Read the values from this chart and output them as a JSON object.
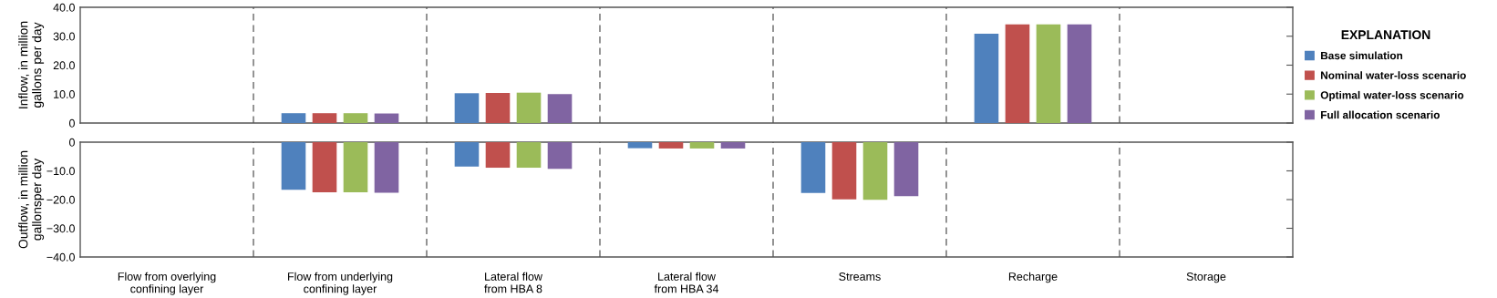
{
  "chart_data": [
    {
      "type": "bar",
      "ylabel": "Inflow, in million\ngallons per day",
      "legend_title": "EXPLANATION",
      "legend": "right",
      "grid": "x",
      "tick_labels": "y",
      "categories": [
        null,
        null,
        null,
        null,
        null,
        null,
        null
      ],
      "ylim": [
        0,
        40
      ],
      "yticks": [
        0,
        {
          "value": 10,
          "label": "10.0"
        },
        {
          "value": 20,
          "label": "20.0"
        },
        {
          "value": 30,
          "label": "30.0"
        },
        {
          "value": 40,
          "label": "40.0"
        }
      ],
      "series": [
        {
          "name": "Base simulation",
          "color": "#4f81bd",
          "values": [
            null,
            3.4,
            10.3,
            null,
            null,
            30.9,
            null
          ]
        },
        {
          "name": "Nominal water-loss scenario",
          "color": "#c0504d",
          "values": [
            null,
            3.4,
            10.4,
            null,
            null,
            34.1,
            null
          ]
        },
        {
          "name": "Optimal water-loss scenario",
          "color": "#9bbb59",
          "values": [
            null,
            3.4,
            10.5,
            null,
            null,
            34.1,
            null
          ]
        },
        {
          "name": "Full allocation scenario",
          "color": "#8064a2",
          "values": [
            null,
            3.3,
            10.0,
            null,
            null,
            34.1,
            null
          ]
        }
      ]
    },
    {
      "type": "bar",
      "ylabel": "Outflow, in million\ngallonsper day",
      "grid": "x",
      "categories": [
        "Flow from overlying\nconfining layer",
        "Flow from underlying\nconfining layer",
        "Lateral flow\nfrom HBA 8",
        "Lateral flow\nfrom HBA 34",
        "Streams",
        "Recharge",
        "Storage"
      ],
      "ylim": [
        -40,
        0
      ],
      "yticks": [
        {
          "value": -40,
          "label": "−40.0"
        },
        {
          "value": -30,
          "label": "−30.0"
        },
        {
          "value": -20,
          "label": "−20.0"
        },
        {
          "value": -10,
          "label": "−10.0"
        },
        0
      ],
      "series": [
        {
          "color": "#4f81bd",
          "values": [
            null,
            -16.6,
            -8.5,
            -2.1,
            -17.7,
            null,
            null
          ]
        },
        {
          "color": "#c0504d",
          "values": [
            null,
            -17.5,
            -8.9,
            -2.2,
            -19.9,
            null,
            null
          ]
        },
        {
          "color": "#9bbb59",
          "values": [
            null,
            -17.5,
            -8.9,
            -2.2,
            -20.1,
            null,
            null
          ]
        },
        {
          "color": "#8064a2",
          "values": [
            null,
            -17.6,
            -9.3,
            -2.2,
            -18.8,
            null,
            null
          ]
        }
      ]
    }
  ]
}
